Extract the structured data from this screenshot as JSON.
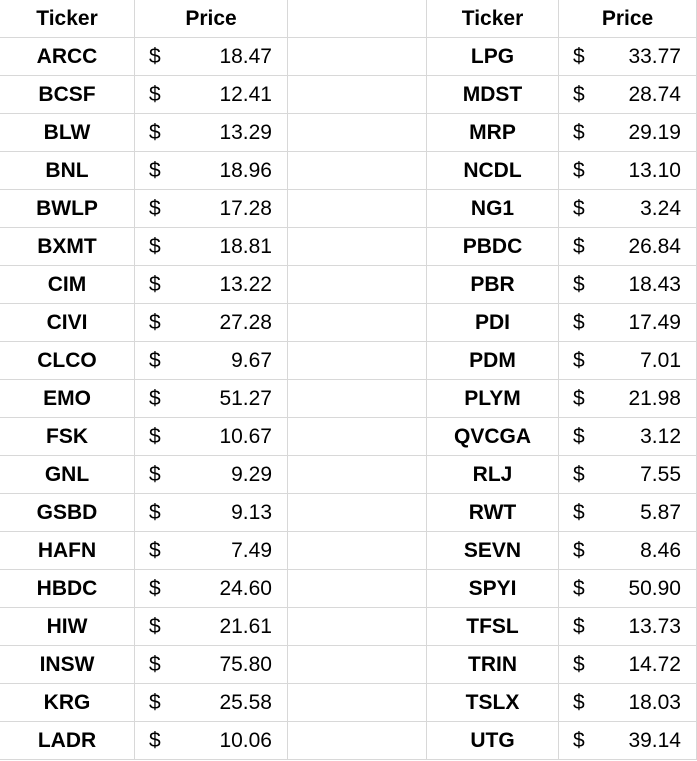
{
  "sheet": {
    "currency_symbol": "$",
    "left_table": {
      "ticker_header": "Ticker",
      "price_header": "Price",
      "rows": [
        {
          "ticker": "ARCC",
          "price": "18.47"
        },
        {
          "ticker": "BCSF",
          "price": "12.41"
        },
        {
          "ticker": "BLW",
          "price": "13.29"
        },
        {
          "ticker": "BNL",
          "price": "18.96"
        },
        {
          "ticker": "BWLP",
          "price": "17.28"
        },
        {
          "ticker": "BXMT",
          "price": "18.81"
        },
        {
          "ticker": "CIM",
          "price": "13.22"
        },
        {
          "ticker": "CIVI",
          "price": "27.28"
        },
        {
          "ticker": "CLCO",
          "price": "9.67"
        },
        {
          "ticker": "EMO",
          "price": "51.27"
        },
        {
          "ticker": "FSK",
          "price": "10.67"
        },
        {
          "ticker": "GNL",
          "price": "9.29"
        },
        {
          "ticker": "GSBD",
          "price": "9.13"
        },
        {
          "ticker": "HAFN",
          "price": "7.49"
        },
        {
          "ticker": "HBDC",
          "price": "24.60"
        },
        {
          "ticker": "HIW",
          "price": "21.61"
        },
        {
          "ticker": "INSW",
          "price": "75.80"
        },
        {
          "ticker": "KRG",
          "price": "25.58"
        },
        {
          "ticker": "LADR",
          "price": "10.06"
        }
      ]
    },
    "right_table": {
      "ticker_header": "Ticker",
      "price_header": "Price",
      "rows": [
        {
          "ticker": "LPG",
          "price": "33.77"
        },
        {
          "ticker": "MDST",
          "price": "28.74"
        },
        {
          "ticker": "MRP",
          "price": "29.19"
        },
        {
          "ticker": "NCDL",
          "price": "13.10"
        },
        {
          "ticker": "NG1",
          "price": "3.24"
        },
        {
          "ticker": "PBDC",
          "price": "26.84"
        },
        {
          "ticker": "PBR",
          "price": "18.43"
        },
        {
          "ticker": "PDI",
          "price": "17.49"
        },
        {
          "ticker": "PDM",
          "price": "7.01"
        },
        {
          "ticker": "PLYM",
          "price": "21.98"
        },
        {
          "ticker": "QVCGA",
          "price": "3.12"
        },
        {
          "ticker": "RLJ",
          "price": "7.55"
        },
        {
          "ticker": "RWT",
          "price": "5.87"
        },
        {
          "ticker": "SEVN",
          "price": "8.46"
        },
        {
          "ticker": "SPYI",
          "price": "50.90"
        },
        {
          "ticker": "TFSL",
          "price": "13.73"
        },
        {
          "ticker": "TRIN",
          "price": "14.72"
        },
        {
          "ticker": "TSLX",
          "price": "18.03"
        },
        {
          "ticker": "UTG",
          "price": "39.14"
        }
      ]
    },
    "colors": {
      "gridline": "#d8d8d8",
      "background": "#ffffff",
      "text": "#000000"
    }
  }
}
